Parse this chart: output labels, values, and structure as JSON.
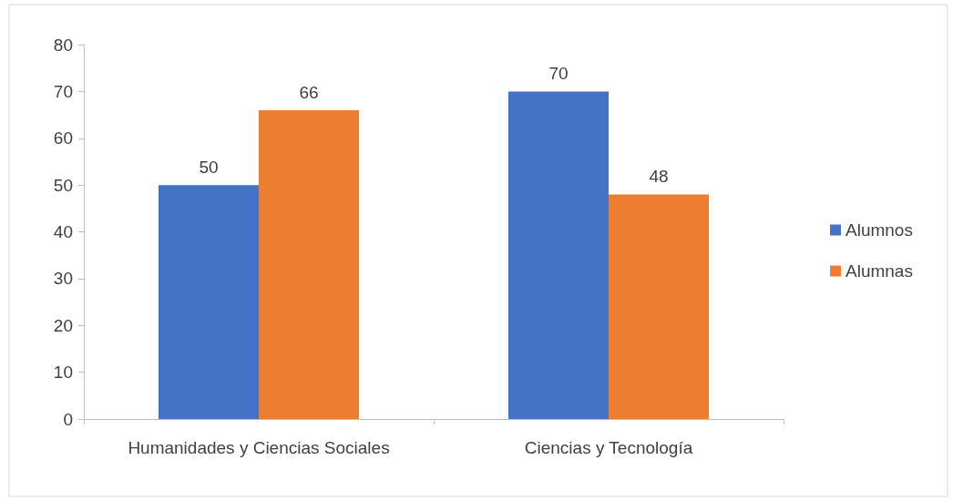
{
  "chart_data": {
    "type": "bar",
    "categories": [
      "Humanidades y Ciencias Sociales",
      "Ciencias y Tecnología"
    ],
    "series": [
      {
        "name": "Alumnos",
        "color": "#4472c4",
        "values": [
          50,
          70
        ]
      },
      {
        "name": "Alumnas",
        "color": "#ed7d31",
        "values": [
          66,
          48
        ]
      }
    ],
    "ylim": [
      0,
      80
    ],
    "yticks": [
      0,
      10,
      20,
      30,
      40,
      50,
      60,
      70,
      80
    ],
    "grid": false,
    "legend": "right",
    "data_labels": true
  }
}
